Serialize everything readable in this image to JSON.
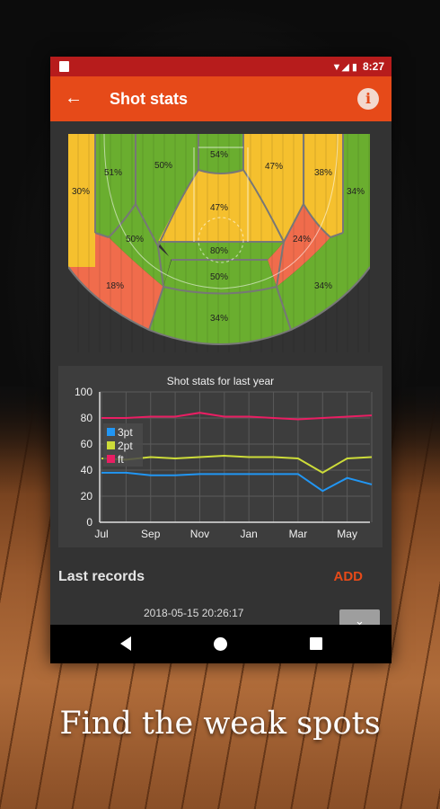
{
  "status_bar": {
    "time": "8:27",
    "icons": "▼◢ ▮"
  },
  "app_bar": {
    "title": "Shot stats",
    "back_icon": "arrow-left-icon",
    "info_icon": "info-icon",
    "info_glyph": "i"
  },
  "colors": {
    "accent": "#e64a19",
    "status": "#b71c1c",
    "green": "#6aae2f",
    "yellow": "#f5c02e",
    "red": "#f06c4c"
  },
  "court_zones": {
    "left_corner": "30%",
    "left_wing_3": "51%",
    "left_center_3": "50%",
    "top_key": "54%",
    "right_center_3": "47%",
    "right_wing_3": "38%",
    "right_corner": "34%",
    "paint": "47%",
    "left_mid": "50%",
    "right_mid": "24%",
    "free_throw": "80%",
    "restricted": "50%",
    "left_deep": "18%",
    "right_deep": "34%",
    "bottom_deep": "34%"
  },
  "chart_data": {
    "type": "line",
    "title": "Shot stats for last year",
    "xlabel": "",
    "ylabel": "",
    "ylim": [
      0,
      100
    ],
    "yticks": [
      "0",
      "20",
      "40",
      "60",
      "80",
      "100"
    ],
    "xticks": [
      "Jul",
      "Sep",
      "Nov",
      "Jan",
      "Mar",
      "May"
    ],
    "x": [
      "Jul",
      "Aug",
      "Sep",
      "Oct",
      "Nov",
      "Dec",
      "Jan",
      "Feb",
      "Mar",
      "Apr",
      "May",
      "Jun"
    ],
    "grid": true,
    "legend": "top-left",
    "series": [
      {
        "name": "3pt",
        "color": "#2196f3",
        "values": [
          38,
          38,
          36,
          36,
          37,
          37,
          37,
          37,
          37,
          24,
          34,
          29
        ]
      },
      {
        "name": "2pt",
        "color": "#cddc39",
        "values": [
          49,
          48,
          50,
          49,
          50,
          51,
          50,
          50,
          49,
          38,
          49,
          50
        ]
      },
      {
        "name": "ft",
        "color": "#e91e63",
        "values": [
          80,
          80,
          81,
          81,
          84,
          81,
          81,
          80,
          79,
          80,
          81,
          82
        ]
      }
    ]
  },
  "records": {
    "title": "Last records",
    "add_label": "ADD",
    "latest_timestamp": "2018-05-15 20:26:17",
    "expand_icon": "chevron-down-icon"
  },
  "nav_bar": {
    "back": "nav-back-icon",
    "home": "nav-home-icon",
    "recent": "nav-recent-icon"
  },
  "tagline": "Find the weak spots"
}
